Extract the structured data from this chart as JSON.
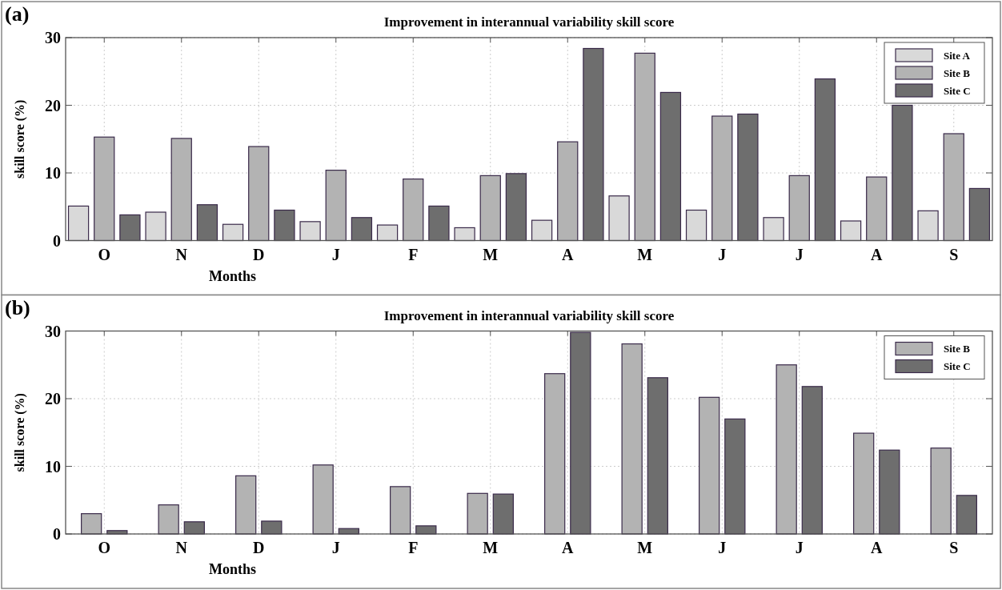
{
  "chart_data": [
    {
      "type": "bar",
      "title": "Improvement in interannual variability skill score",
      "xlabel": "Months",
      "ylabel": "skill score (%)",
      "annotations": [
        "(a)"
      ],
      "categories": [
        "O",
        "N",
        "D",
        "J",
        "F",
        "M",
        "A",
        "M",
        "J",
        "J",
        "A",
        "S"
      ],
      "series": [
        {
          "name": "Site A",
          "color": "#d9d9d9",
          "values": [
            5.1,
            4.2,
            2.4,
            2.8,
            2.3,
            1.9,
            3.0,
            6.6,
            4.5,
            3.4,
            2.9,
            4.4
          ]
        },
        {
          "name": "Site B",
          "color": "#b3b3b3",
          "values": [
            15.3,
            15.1,
            13.9,
            10.4,
            9.1,
            9.6,
            14.6,
            27.7,
            18.4,
            9.6,
            9.4,
            15.8
          ]
        },
        {
          "name": "Site C",
          "color": "#6e6e6e",
          "values": [
            3.8,
            5.3,
            4.5,
            3.4,
            5.1,
            9.9,
            28.4,
            21.9,
            18.7,
            23.9,
            20.0,
            7.7
          ]
        }
      ],
      "ylim": [
        0,
        30
      ],
      "yticks": [
        0,
        10,
        20,
        30
      ],
      "grid": true,
      "legend": "top right"
    },
    {
      "type": "bar",
      "title": "Improvement in interannual variability skill score",
      "xlabel": "Months",
      "ylabel": "skill score (%)",
      "annotations": [
        "(b)"
      ],
      "categories": [
        "O",
        "N",
        "D",
        "J",
        "F",
        "M",
        "A",
        "M",
        "J",
        "J",
        "A",
        "S"
      ],
      "series": [
        {
          "name": "Site B",
          "color": "#b3b3b3",
          "values": [
            3.0,
            4.3,
            8.6,
            10.2,
            7.0,
            6.0,
            23.7,
            28.1,
            20.2,
            25.0,
            14.9,
            12.7
          ]
        },
        {
          "name": "Site C",
          "color": "#6e6e6e",
          "values": [
            0.5,
            1.8,
            1.9,
            0.8,
            1.2,
            5.9,
            29.8,
            23.1,
            17.0,
            21.8,
            12.4,
            5.7
          ]
        }
      ],
      "ylim": [
        0,
        30
      ],
      "yticks": [
        0,
        10,
        20,
        30
      ],
      "grid": true,
      "legend": "top right"
    }
  ]
}
